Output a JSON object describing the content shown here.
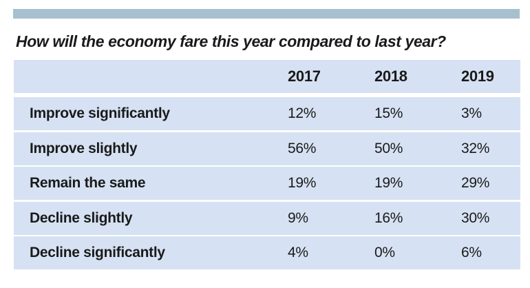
{
  "chart_data": {
    "type": "table",
    "title": "How will the economy fare this year compared to last year?",
    "columns": [
      "2017",
      "2018",
      "2019"
    ],
    "rows": [
      {
        "label": "Improve significantly",
        "values": [
          "12%",
          "15%",
          "3%"
        ]
      },
      {
        "label": "Improve slightly",
        "values": [
          "56%",
          "50%",
          "32%"
        ]
      },
      {
        "label": "Remain the same",
        "values": [
          "19%",
          "19%",
          "29%"
        ]
      },
      {
        "label": "Decline slightly",
        "values": [
          "9%",
          "16%",
          "30%"
        ]
      },
      {
        "label": "Decline significantly",
        "values": [
          "4%",
          "0%",
          "6%"
        ]
      }
    ]
  },
  "colors": {
    "top_bar": "#a7c0cf",
    "row_background": "#d6e2f3",
    "text": "#1a1a1a"
  }
}
